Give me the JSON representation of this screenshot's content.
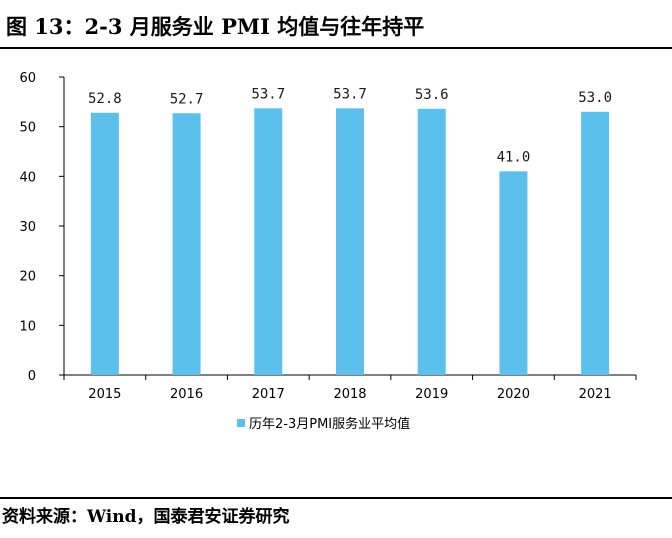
{
  "figure": {
    "title": "图 13：2-3 月服务业 PMI 均值与往年持平",
    "source": "资料来源：Wind，国泰君安证券研究"
  },
  "chart_data": {
    "type": "bar",
    "categories": [
      "2015",
      "2016",
      "2017",
      "2018",
      "2019",
      "2020",
      "2021"
    ],
    "series": [
      {
        "name": "历年2-3月PMI服务业平均值",
        "values": [
          52.8,
          52.7,
          53.7,
          53.7,
          53.6,
          41.0,
          53.0
        ],
        "data_labels": [
          "52.8",
          "52.7",
          "53.7",
          "53.7",
          "53.6",
          "41.0",
          "53.0"
        ],
        "color": "#5bc0eb"
      }
    ],
    "ylim": [
      0,
      60
    ],
    "yticks": [
      0,
      10,
      20,
      30,
      40,
      50,
      60
    ],
    "grid": false,
    "legend": "bottom"
  }
}
